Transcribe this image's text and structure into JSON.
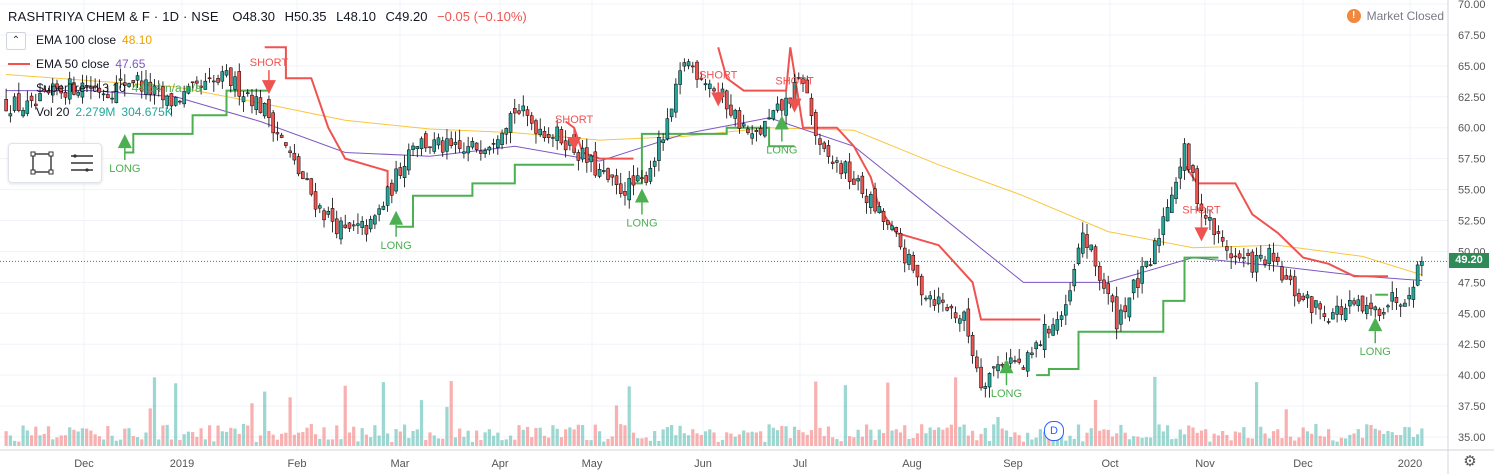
{
  "header": {
    "symbol": "RASHTRIYA CHEM & F · 1D · NSE",
    "open": "O48.30",
    "high": "H50.35",
    "low": "L48.10",
    "close": "C49.20",
    "change": "−0.05 (−0.10%)"
  },
  "legend": {
    "ema100_label": "EMA 100 close",
    "ema100_value": "48.10",
    "ema50_label": "EMA 50 close",
    "ema50_value": "47.65",
    "supertrend_label": "SuperTrend 3 10",
    "supertrend_value": "44.64 n/a n/a",
    "volume_label": "Vol 20",
    "volume_value1": "2.279M",
    "volume_value2": "304.675K"
  },
  "status": {
    "market": "Market Closed",
    "alert_symbol": "!"
  },
  "last_price_label": "49.20",
  "dividend_marker": "D",
  "colors": {
    "up": "#26a69a",
    "down": "#ef5350",
    "ema100": "#f9c63d",
    "ema50": "#7e57c2",
    "supertrend_up": "#4caf50",
    "supertrend_down": "#ef5350",
    "price_line": "#2e8b57"
  },
  "chart_data": {
    "type": "candlestick",
    "x_ticks": [
      "Dec",
      "2019",
      "Feb",
      "Mar",
      "Apr",
      "May",
      "Jun",
      "Jul",
      "Aug",
      "Sep",
      "Oct",
      "Nov",
      "Dec",
      "2020"
    ],
    "y_ticks": [
      35.0,
      37.5,
      40.0,
      42.5,
      45.0,
      47.5,
      50.0,
      52.5,
      55.0,
      57.5,
      60.0,
      62.5,
      65.0,
      67.5,
      70.0
    ],
    "ylim": [
      34.8,
      70.2
    ],
    "last_close": 49.2,
    "close_path": [
      [
        0,
        62.0
      ],
      [
        6,
        61.5
      ],
      [
        12,
        63.0
      ],
      [
        18,
        63.5
      ],
      [
        24,
        63.0
      ],
      [
        30,
        64.0
      ],
      [
        38,
        62.0
      ],
      [
        45,
        63.0
      ],
      [
        52,
        64.0
      ],
      [
        58,
        62.5
      ],
      [
        62,
        61.0
      ],
      [
        68,
        57.0
      ],
      [
        74,
        53.5
      ],
      [
        80,
        51.5
      ],
      [
        86,
        52.0
      ],
      [
        90,
        54.5
      ],
      [
        96,
        59.0
      ],
      [
        102,
        58.5
      ],
      [
        108,
        58.0
      ],
      [
        114,
        59.0
      ],
      [
        120,
        61.5
      ],
      [
        126,
        60.0
      ],
      [
        132,
        59.0
      ],
      [
        138,
        57.0
      ],
      [
        144,
        55.0
      ],
      [
        150,
        55.5
      ],
      [
        156,
        60.0
      ],
      [
        160,
        65.5
      ],
      [
        165,
        64.0
      ],
      [
        170,
        62.0
      ],
      [
        176,
        59.0
      ],
      [
        180,
        60.5
      ],
      [
        184,
        62.0
      ],
      [
        188,
        64.0
      ],
      [
        192,
        58.0
      ],
      [
        198,
        56.5
      ],
      [
        204,
        54.0
      ],
      [
        210,
        51.0
      ],
      [
        216,
        47.0
      ],
      [
        222,
        45.5
      ],
      [
        226,
        44.5
      ],
      [
        230,
        39.5
      ],
      [
        236,
        41.5
      ],
      [
        240,
        40.5
      ],
      [
        246,
        44.0
      ],
      [
        250,
        45.0
      ],
      [
        254,
        51.5
      ],
      [
        258,
        48.0
      ],
      [
        262,
        44.5
      ],
      [
        266,
        47.0
      ],
      [
        270,
        49.0
      ],
      [
        274,
        54.0
      ],
      [
        278,
        58.0
      ],
      [
        282,
        53.5
      ],
      [
        286,
        51.0
      ],
      [
        290,
        49.5
      ],
      [
        294,
        49.0
      ],
      [
        298,
        49.5
      ],
      [
        302,
        47.5
      ],
      [
        306,
        46.0
      ],
      [
        312,
        45.0
      ],
      [
        318,
        45.5
      ],
      [
        322,
        45.0
      ],
      [
        326,
        46.0
      ],
      [
        330,
        46.5
      ],
      [
        334,
        49.2
      ]
    ],
    "ema100": [
      [
        0,
        64.3
      ],
      [
        20,
        63.8
      ],
      [
        40,
        63.3
      ],
      [
        60,
        62.0
      ],
      [
        80,
        60.6
      ],
      [
        100,
        59.9
      ],
      [
        120,
        59.6
      ],
      [
        140,
        59.0
      ],
      [
        160,
        59.3
      ],
      [
        180,
        60.0
      ],
      [
        200,
        59.8
      ],
      [
        220,
        57.0
      ],
      [
        240,
        54.5
      ],
      [
        260,
        51.6
      ],
      [
        280,
        50.3
      ],
      [
        300,
        50.5
      ],
      [
        320,
        49.6
      ],
      [
        334,
        48.1
      ]
    ],
    "ema50": [
      [
        0,
        63.0
      ],
      [
        20,
        63.0
      ],
      [
        40,
        62.5
      ],
      [
        60,
        60.5
      ],
      [
        80,
        58.0
      ],
      [
        100,
        57.7
      ],
      [
        120,
        58.5
      ],
      [
        140,
        57.3
      ],
      [
        160,
        59.5
      ],
      [
        180,
        60.8
      ],
      [
        200,
        58.5
      ],
      [
        220,
        53.0
      ],
      [
        240,
        47.5
      ],
      [
        260,
        47.5
      ],
      [
        280,
        49.5
      ],
      [
        300,
        48.8
      ],
      [
        320,
        48.0
      ],
      [
        334,
        47.65
      ]
    ],
    "supertrend_up": [
      [
        [
          28,
          58.0
        ],
        [
          30,
          58.0
        ],
        [
          30,
          59.5
        ],
        [
          44,
          59.5
        ],
        [
          44,
          61.0
        ],
        [
          52,
          61.0
        ],
        [
          52,
          63.0
        ],
        [
          62,
          63.0
        ]
      ],
      [
        [
          92,
          52.0
        ],
        [
          96,
          52.0
        ],
        [
          96,
          54.5
        ],
        [
          110,
          54.5
        ],
        [
          110,
          55.5
        ],
        [
          120,
          55.5
        ],
        [
          120,
          57.0
        ],
        [
          134,
          57.0
        ]
      ],
      [
        [
          147,
          55.5
        ],
        [
          150,
          55.5
        ],
        [
          150,
          59.5
        ],
        [
          170,
          59.5
        ],
        [
          170,
          60.0
        ],
        [
          180,
          60.0
        ],
        [
          180,
          58.5
        ],
        [
          186,
          58.5
        ]
      ],
      [
        [
          243,
          40.0
        ],
        [
          246,
          40.0
        ],
        [
          246,
          40.5
        ],
        [
          253,
          40.5
        ],
        [
          253,
          43.5
        ],
        [
          273,
          43.5
        ],
        [
          273,
          46.0
        ],
        [
          278,
          46.0
        ],
        [
          278,
          49.5
        ],
        [
          286,
          49.5
        ]
      ],
      [
        [
          323,
          46.5
        ],
        [
          326,
          46.5
        ]
      ]
    ],
    "supertrend_down": [
      [
        [
          61,
          66.5
        ],
        [
          66,
          66.5
        ],
        [
          66,
          64.0
        ],
        [
          72,
          64.0
        ],
        [
          76,
          60.0
        ],
        [
          80,
          57.5
        ],
        [
          90,
          56.5
        ],
        [
          90,
          55.0
        ]
      ],
      [
        [
          132,
          60.5
        ],
        [
          134,
          60.0
        ],
        [
          136,
          58.0
        ],
        [
          140,
          57.5
        ],
        [
          148,
          57.5
        ]
      ],
      [
        [
          168,
          66.5
        ],
        [
          170,
          64.0
        ],
        [
          174,
          63.0
        ],
        [
          184,
          63.0
        ],
        [
          185,
          66.5
        ],
        [
          188,
          60.0
        ],
        [
          196,
          60.0
        ],
        [
          200,
          58.5
        ],
        [
          204,
          56.0
        ],
        [
          206,
          53.5
        ],
        [
          210,
          51.5
        ],
        [
          220,
          50.5
        ],
        [
          228,
          47.5
        ],
        [
          230,
          44.5
        ],
        [
          240,
          44.5
        ],
        [
          244,
          44.5
        ]
      ],
      [
        [
          278,
          57.0
        ],
        [
          281,
          55.5
        ],
        [
          290,
          55.5
        ],
        [
          294,
          53.0
        ],
        [
          300,
          51.5
        ],
        [
          306,
          49.5
        ],
        [
          312,
          49.0
        ],
        [
          318,
          48.0
        ],
        [
          326,
          48.0
        ]
      ]
    ],
    "signals": [
      {
        "type": "LONG",
        "bar": 28,
        "price": 59.0
      },
      {
        "type": "SHORT",
        "bar": 62,
        "price": 63.2
      },
      {
        "type": "LONG",
        "bar": 92,
        "price": 52.8
      },
      {
        "type": "SHORT",
        "bar": 134,
        "price": 58.6
      },
      {
        "type": "LONG",
        "bar": 150,
        "price": 54.6
      },
      {
        "type": "SHORT",
        "bar": 168,
        "price": 62.2
      },
      {
        "type": "LONG",
        "bar": 183,
        "price": 60.5
      },
      {
        "type": "SHORT",
        "bar": 186,
        "price": 61.7
      },
      {
        "type": "LONG",
        "bar": 236,
        "price": 40.8
      },
      {
        "type": "SHORT",
        "bar": 282,
        "price": 51.3
      },
      {
        "type": "LONG",
        "bar": 323,
        "price": 44.2
      }
    ]
  }
}
